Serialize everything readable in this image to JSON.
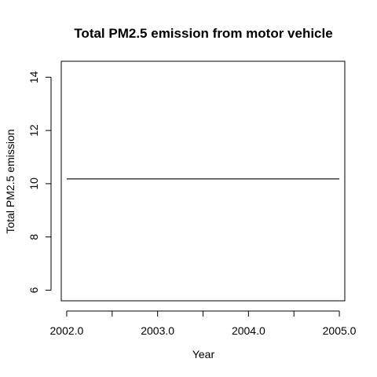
{
  "chart_data": {
    "type": "line",
    "title": "Total PM2.5 emission from motor vehicle",
    "xlabel": "Year",
    "ylabel": "Total PM2.5 emission",
    "x": [
      2002,
      2005
    ],
    "series": [
      {
        "values": [
          10.18,
          10.18
        ],
        "color": "#000000"
      }
    ],
    "xlim": [
      2001.94,
      2005.06
    ],
    "ylim": [
      5.6,
      14.6
    ],
    "x_ticks": [
      2002,
      2002.5,
      2003,
      2003.5,
      2004,
      2004.5,
      2005
    ],
    "x_tick_labels": [
      {
        "value": 2002,
        "label": "2002.0"
      },
      {
        "value": 2003,
        "label": "2003.0"
      },
      {
        "value": 2004,
        "label": "2004.0"
      },
      {
        "value": 2005,
        "label": "2005.0"
      }
    ],
    "y_ticks": [
      6,
      8,
      10,
      12,
      14
    ],
    "y_tick_labels": [
      "6",
      "8",
      "10",
      "12",
      "14"
    ],
    "grid": false,
    "box": true
  }
}
